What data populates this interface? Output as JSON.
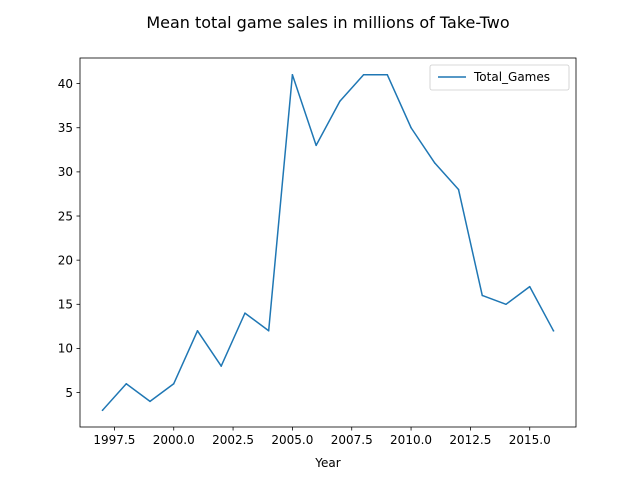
{
  "chart_data": {
    "type": "line",
    "title": "Mean total game sales in millions of Take-Two",
    "xlabel": "Year",
    "ylabel": "",
    "x": [
      1997,
      1998,
      1999,
      2000,
      2001,
      2002,
      2003,
      2004,
      2005,
      2006,
      2007,
      2008,
      2009,
      2010,
      2011,
      2012,
      2013,
      2014,
      2015,
      2016
    ],
    "series": [
      {
        "name": "Total_Games",
        "color": "#1f77b4",
        "values": [
          3,
          6,
          4,
          6,
          12,
          8,
          14,
          12,
          41,
          33,
          38,
          41,
          41,
          35,
          31,
          28,
          16,
          15,
          17,
          12
        ]
      }
    ],
    "xlim": [
      1996.05,
      2016.95
    ],
    "ylim": [
      1.1,
      42.9
    ],
    "xticks": [
      1997.5,
      2000.0,
      2002.5,
      2005.0,
      2007.5,
      2010.0,
      2012.5,
      2015.0
    ],
    "xtick_labels": [
      "1997.5",
      "2000.0",
      "2002.5",
      "2005.0",
      "2007.5",
      "2010.0",
      "2012.5",
      "2015.0"
    ],
    "yticks": [
      5,
      10,
      15,
      20,
      25,
      30,
      35,
      40
    ],
    "ytick_labels": [
      "5",
      "10",
      "15",
      "20",
      "25",
      "30",
      "35",
      "40"
    ],
    "grid": false,
    "legend_position": "top-right"
  }
}
